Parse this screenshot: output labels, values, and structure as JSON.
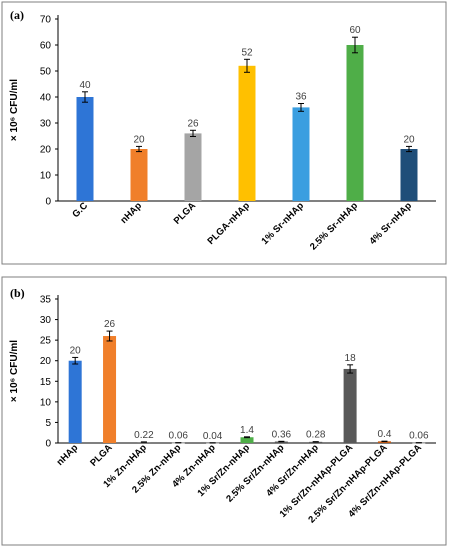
{
  "chart_data": [
    {
      "type": "bar",
      "panel": "(a)",
      "ylabel": "× 10⁶ CFU/ml",
      "ylim": [
        0,
        70
      ],
      "yticks": [
        0,
        10,
        20,
        30,
        40,
        50,
        60,
        70
      ],
      "grid": false,
      "legend": "none",
      "categories": [
        "G.C",
        "nHAp",
        "PLGA",
        "PLGA-nHAp",
        "1% Sr-nHAp",
        "2.5% Sr-nHAp",
        "4% Sr-nHAp"
      ],
      "values": [
        40,
        20,
        26,
        52,
        36,
        60,
        20
      ],
      "errors": [
        2,
        1,
        1.2,
        2.5,
        1.5,
        3,
        1
      ],
      "value_labels": [
        "40",
        "20",
        "26",
        "52",
        "36",
        "60",
        "20"
      ],
      "colors": [
        "#2e75d6",
        "#f07f2a",
        "#a5a5a5",
        "#ffc000",
        "#3a9ee0",
        "#4fae48",
        "#1f4e79"
      ]
    },
    {
      "type": "bar",
      "panel": "(b)",
      "ylabel": "× 10⁶ CFU/ml",
      "ylim": [
        0,
        35
      ],
      "yticks": [
        0,
        5,
        10,
        15,
        20,
        25,
        30,
        35
      ],
      "grid": false,
      "legend": "none",
      "categories": [
        "nHAp",
        "PLGA",
        "1% Zn-nHAp",
        "2.5% Zn-nHAp",
        "4% Zn-nHAp",
        "1% Sr/Zn-nHAp",
        "2.5% Sr/Zn-nHAp",
        "4% Sr/Zn-nHAp",
        "1% Sr/Zn-nHAp-PLGA",
        "2.5% Sr/Zn-nHAp-PLGA",
        "4% Sr/Zn-nHAp-PLGA"
      ],
      "values": [
        20,
        26,
        0.22,
        0.06,
        0.04,
        1.4,
        0.36,
        0.28,
        18,
        0.4,
        0.06
      ],
      "errors": [
        0.8,
        1.2,
        0.05,
        0.02,
        0.02,
        0.1,
        0.05,
        0.05,
        1,
        0.05,
        0.02
      ],
      "value_labels": [
        "20",
        "26",
        "0.22",
        "0.06",
        "0.04",
        "1.4",
        "0.36",
        "0.28",
        "18",
        "0.4",
        "0.06"
      ],
      "colors": [
        "#2e75d6",
        "#f07f2a",
        "#7f7f7f",
        "#b0b0b0",
        "#a5a5a5",
        "#4fae48",
        "#595959",
        "#595959",
        "#595959",
        "#c55a11",
        "#a5a5a5"
      ]
    }
  ]
}
